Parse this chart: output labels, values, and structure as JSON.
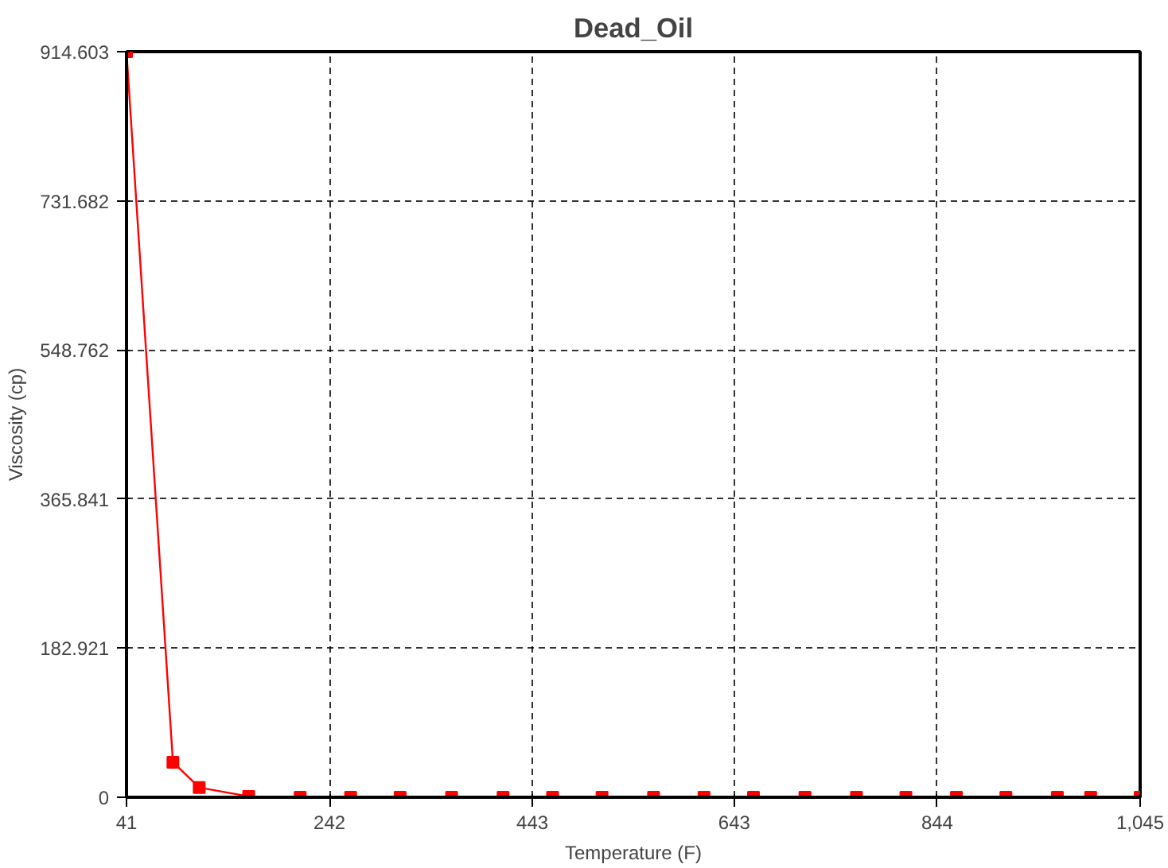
{
  "chart_data": {
    "type": "line",
    "title": "Dead_Oil",
    "xlabel": "Temperature (F)",
    "ylabel": "Viscosity (cp)",
    "x": [
      41,
      87,
      113,
      162,
      213,
      263,
      312,
      363,
      414,
      463,
      512,
      563,
      613,
      662,
      713,
      764,
      813,
      863,
      912,
      963,
      996,
      1045
    ],
    "series": [
      {
        "color": "#ff0000",
        "values": [
          914.603,
          43,
          12,
          1,
          0,
          0,
          0,
          0,
          0,
          0,
          0,
          0,
          0,
          0,
          0,
          0,
          0,
          0,
          0,
          0,
          0,
          0
        ]
      }
    ],
    "xlim": [
      41,
      1045
    ],
    "ylim": [
      0,
      914.603
    ],
    "xticks": [
      41,
      242,
      443,
      643,
      844,
      {
        "value": 1045,
        "label": "1,045"
      }
    ],
    "yticks": [
      0,
      182.921,
      365.841,
      548.762,
      731.682,
      914.603
    ],
    "grid": true,
    "marker": "square",
    "line_style": "solid"
  }
}
